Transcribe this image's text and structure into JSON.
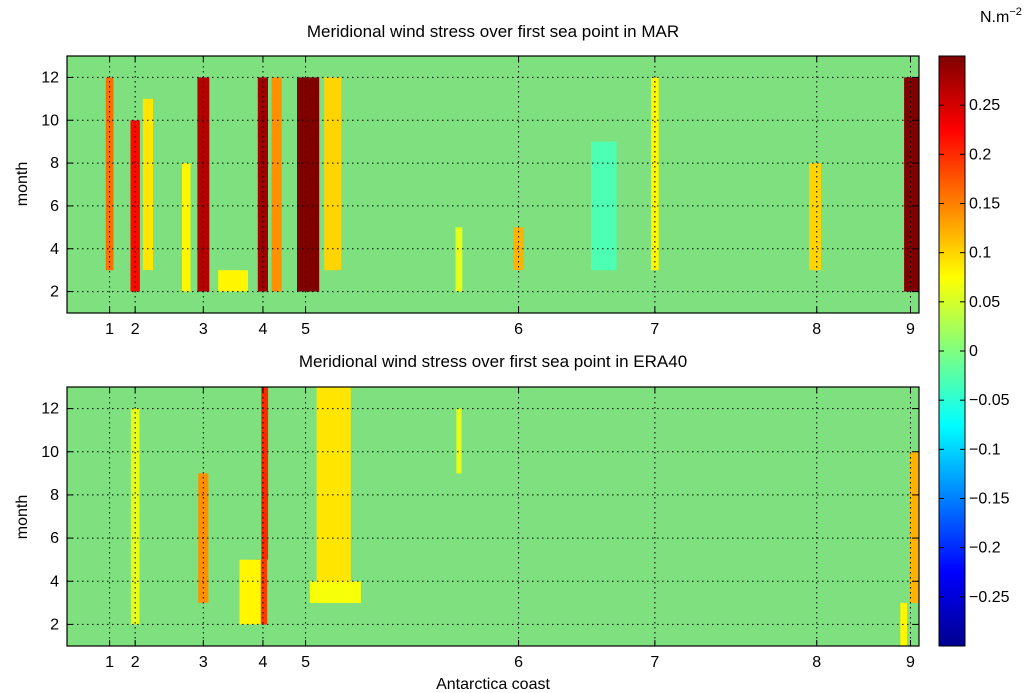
{
  "chart_data": [
    {
      "type": "heatmap",
      "title": "Meridional wind stress over first sea point in MAR",
      "xlabel": "",
      "ylabel": "month",
      "ylim": [
        1,
        13
      ],
      "yticks": [
        2,
        4,
        6,
        8,
        10,
        12
      ],
      "xlim": [
        0,
        100
      ],
      "xtick_positions": [
        5,
        8,
        16,
        23,
        28,
        53,
        69,
        88,
        99
      ],
      "xtick_labels": [
        "1",
        "2",
        "3",
        "4",
        "5",
        "6",
        "7",
        "8",
        "9"
      ],
      "grid": true,
      "bands": [
        {
          "x": 5,
          "width": 0.9,
          "value": 0.16,
          "months": [
            3,
            12
          ]
        },
        {
          "x": 8,
          "width": 1.1,
          "value": 0.22,
          "months": [
            2,
            10
          ]
        },
        {
          "x": 9.5,
          "width": 1.2,
          "value": 0.09,
          "months": [
            3,
            11
          ]
        },
        {
          "x": 14,
          "width": 1.0,
          "value": 0.08,
          "months": [
            2,
            8
          ]
        },
        {
          "x": 16,
          "width": 1.4,
          "value": 0.27,
          "months": [
            2,
            12
          ]
        },
        {
          "x": 19.5,
          "width": 3.5,
          "value": 0.08,
          "months": [
            2,
            3
          ]
        },
        {
          "x": 23,
          "width": 1.2,
          "value": 0.28,
          "months": [
            2,
            12
          ]
        },
        {
          "x": 24.6,
          "width": 1.2,
          "value": 0.14,
          "months": [
            2,
            12
          ]
        },
        {
          "x": 28.3,
          "width": 2.6,
          "value": 0.3,
          "months": [
            2,
            12
          ]
        },
        {
          "x": 31.2,
          "width": 2.0,
          "value": 0.1,
          "months": [
            3,
            12
          ]
        },
        {
          "x": 53,
          "width": 1.2,
          "value": 0.12,
          "months": [
            3,
            5
          ]
        },
        {
          "x": 46,
          "width": 0.8,
          "value": 0.06,
          "months": [
            2,
            5
          ]
        },
        {
          "x": 69,
          "width": 0.9,
          "value": 0.08,
          "months": [
            3,
            12
          ]
        },
        {
          "x": 87.8,
          "width": 1.4,
          "value": 0.1,
          "months": [
            3,
            8
          ]
        },
        {
          "x": 99.2,
          "width": 1.9,
          "value": 0.3,
          "months": [
            2,
            12
          ]
        },
        {
          "x": 63,
          "width": 3.0,
          "value": -0.03,
          "months": [
            3,
            9
          ]
        }
      ]
    },
    {
      "type": "heatmap",
      "title": "Meridional wind stress over first sea point in ERA40",
      "xlabel": "Antarctica coast",
      "ylabel": "month",
      "ylim": [
        1,
        13
      ],
      "yticks": [
        2,
        4,
        6,
        8,
        10,
        12
      ],
      "xlim": [
        0,
        100
      ],
      "xtick_positions": [
        5,
        8,
        16,
        23,
        28,
        53,
        69,
        88,
        99
      ],
      "xtick_labels": [
        "1",
        "2",
        "3",
        "4",
        "5",
        "6",
        "7",
        "8",
        "9"
      ],
      "grid": true,
      "bands": [
        {
          "x": 8,
          "width": 1.0,
          "value": 0.07,
          "months": [
            2,
            12
          ]
        },
        {
          "x": 16,
          "width": 1.2,
          "value": 0.14,
          "months": [
            3,
            9
          ]
        },
        {
          "x": 22.8,
          "width": 1.4,
          "value": 0.19,
          "months": [
            2,
            5
          ]
        },
        {
          "x": 23.2,
          "width": 0.8,
          "value": 0.2,
          "months": [
            5,
            13
          ]
        },
        {
          "x": 21.5,
          "width": 2.5,
          "value": 0.08,
          "months": [
            2,
            5
          ]
        },
        {
          "x": 31.3,
          "width": 3.0,
          "value": 0.14,
          "months": [
            3,
            11
          ]
        },
        {
          "x": 31.3,
          "width": 4.0,
          "value": 0.09,
          "months": [
            3,
            13
          ]
        },
        {
          "x": 31.5,
          "width": 6.0,
          "value": 0.07,
          "months": [
            3,
            4
          ]
        },
        {
          "x": 46,
          "width": 0.6,
          "value": 0.06,
          "months": [
            9,
            12
          ]
        },
        {
          "x": 99.5,
          "width": 1.2,
          "value": 0.12,
          "months": [
            3,
            10
          ]
        },
        {
          "x": 98.2,
          "width": 0.8,
          "value": 0.08,
          "months": [
            1,
            3
          ]
        },
        {
          "x": 8,
          "width": 0.8,
          "value": 0.06,
          "months": [
            2,
            12
          ]
        }
      ]
    }
  ],
  "colorbar": {
    "unit": "N.m",
    "unit_exponent": "−2",
    "vmin": -0.3,
    "vmax": 0.3,
    "ticks": [
      0.25,
      0.2,
      0.15,
      0.1,
      0.05,
      0,
      -0.05,
      -0.1,
      -0.15,
      -0.2,
      -0.25
    ],
    "tick_labels": [
      "0.25",
      "0.2",
      "0.15",
      "0.1",
      "0.05",
      "0",
      "−0.05",
      "−0.1",
      "−0.15",
      "−0.2",
      "−0.25"
    ],
    "colormap": "jet"
  },
  "colors": {
    "background_field": "#7ee07e",
    "grid": "#000000",
    "frame": "#000000"
  }
}
